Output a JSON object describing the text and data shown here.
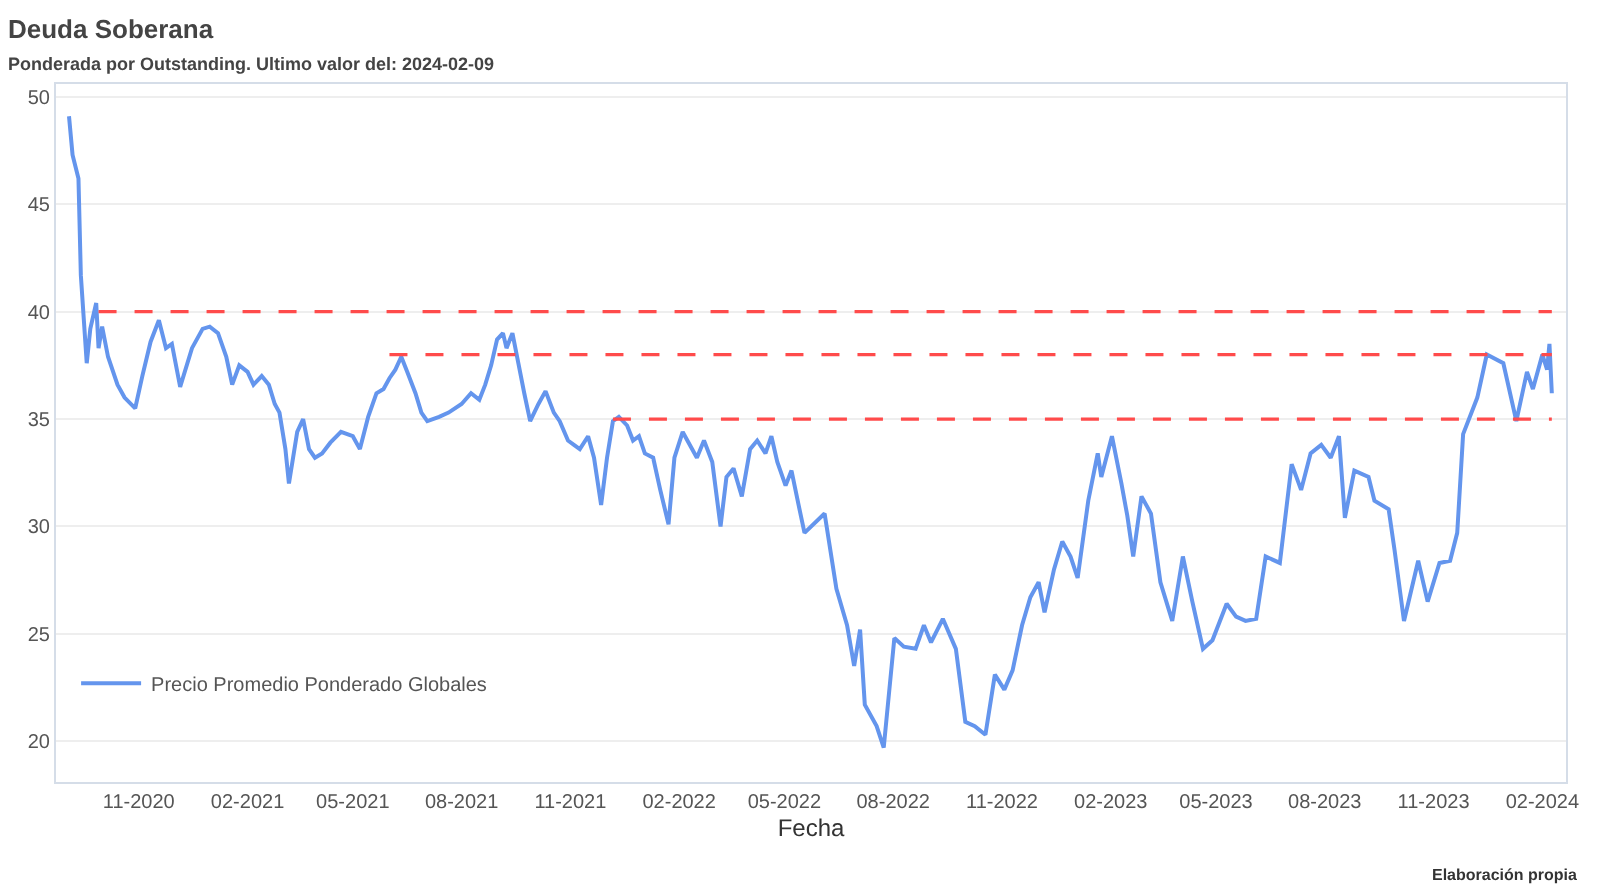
{
  "chart_data": {
    "type": "line",
    "title": "Deuda Soberana",
    "subtitle": "Ponderada por Outstanding. Ultimo valor del: 2024-02-09",
    "xlabel": "Fecha",
    "annotations": [
      "Elaboración propia"
    ],
    "series": [
      {
        "name": "Precio Promedio Ponderado Globales",
        "color": "#6495ed",
        "line_style": "solid",
        "x": [
          "2020-09-03",
          "2020-09-06",
          "2020-09-11",
          "2020-09-13",
          "2020-09-18",
          "2020-09-21",
          "2020-09-26",
          "2020-09-28",
          "2020-10-01",
          "2020-10-06",
          "2020-10-14",
          "2020-10-20",
          "2020-10-29",
          "2020-11-04",
          "2020-11-11",
          "2020-11-18",
          "2020-11-24",
          "2020-11-29",
          "2020-12-06",
          "2020-12-16",
          "2020-12-25",
          "2020-12-31",
          "2021-01-07",
          "2021-01-14",
          "2021-01-19",
          "2021-01-25",
          "2021-02-01",
          "2021-02-06",
          "2021-02-13",
          "2021-02-19",
          "2021-02-24",
          "2021-02-28",
          "2021-03-05",
          "2021-03-08",
          "2021-03-15",
          "2021-03-20",
          "2021-03-25",
          "2021-03-30",
          "2021-04-05",
          "2021-04-12",
          "2021-04-21",
          "2021-05-01",
          "2021-05-07",
          "2021-05-14",
          "2021-05-21",
          "2021-05-27",
          "2021-06-01",
          "2021-06-06",
          "2021-06-11",
          "2021-06-16",
          "2021-06-23",
          "2021-06-28",
          "2021-07-03",
          "2021-07-13",
          "2021-07-21",
          "2021-08-01",
          "2021-08-09",
          "2021-08-16",
          "2021-08-21",
          "2021-08-26",
          "2021-08-31",
          "2021-09-05",
          "2021-09-08",
          "2021-09-13",
          "2021-09-18",
          "2021-09-23",
          "2021-09-28",
          "2021-10-05",
          "2021-10-11",
          "2021-10-18",
          "2021-10-23",
          "2021-10-30",
          "2021-11-04",
          "2021-11-09",
          "2021-11-16",
          "2021-11-21",
          "2021-11-27",
          "2021-12-02",
          "2021-12-07",
          "2021-12-12",
          "2021-12-19",
          "2021-12-24",
          "2021-12-29",
          "2022-01-03",
          "2022-01-10",
          "2022-01-16",
          "2022-01-23",
          "2022-01-28",
          "2022-02-04",
          "2022-02-09",
          "2022-02-16",
          "2022-02-22",
          "2022-03-01",
          "2022-03-08",
          "2022-03-13",
          "2022-03-19",
          "2022-03-26",
          "2022-04-02",
          "2022-04-08",
          "2022-04-15",
          "2022-04-20",
          "2022-04-25",
          "2022-05-02",
          "2022-05-07",
          "2022-05-13",
          "2022-05-18",
          "2022-06-04",
          "2022-06-14",
          "2022-06-23",
          "2022-06-29",
          "2022-07-04",
          "2022-07-08",
          "2022-07-18",
          "2022-07-24",
          "2022-08-02",
          "2022-08-10",
          "2022-08-20",
          "2022-08-27",
          "2022-09-02",
          "2022-09-12",
          "2022-09-23",
          "2022-10-01",
          "2022-10-09",
          "2022-10-18",
          "2022-10-26",
          "2022-11-03",
          "2022-11-10",
          "2022-11-18",
          "2022-11-25",
          "2022-12-02",
          "2022-12-07",
          "2022-12-15",
          "2022-12-22",
          "2022-12-29",
          "2023-01-04",
          "2023-01-13",
          "2023-01-21",
          "2023-01-24",
          "2023-02-02",
          "2023-02-10",
          "2023-02-15",
          "2023-02-20",
          "2023-02-27",
          "2023-03-07",
          "2023-03-15",
          "2023-03-25",
          "2023-04-03",
          "2023-04-11",
          "2023-04-20",
          "2023-04-28",
          "2023-05-10",
          "2023-05-18",
          "2023-05-26",
          "2023-06-04",
          "2023-06-12",
          "2023-06-24",
          "2023-07-04",
          "2023-07-12",
          "2023-07-20",
          "2023-07-29",
          "2023-08-06",
          "2023-08-13",
          "2023-08-18",
          "2023-08-26",
          "2023-09-07",
          "2023-09-12",
          "2023-09-24",
          "2023-09-29",
          "2023-10-07",
          "2023-10-19",
          "2023-10-27",
          "2023-11-06",
          "2023-11-15",
          "2023-11-21",
          "2023-11-26",
          "2023-12-08",
          "2023-12-16",
          "2023-12-30",
          "2024-01-10",
          "2024-01-19",
          "2024-01-24",
          "2024-02-01",
          "2024-02-05",
          "2024-02-07",
          "2024-02-09"
        ],
        "values": [
          49.1,
          47.3,
          46.2,
          41.7,
          37.6,
          39.2,
          40.4,
          38.3,
          39.3,
          37.9,
          36.6,
          36.0,
          35.5,
          37.0,
          38.6,
          39.6,
          38.3,
          38.5,
          36.5,
          38.3,
          39.2,
          39.3,
          39.0,
          37.9,
          36.6,
          37.5,
          37.2,
          36.6,
          37.0,
          36.6,
          35.7,
          35.3,
          33.6,
          32.0,
          34.4,
          35.0,
          33.6,
          33.2,
          33.4,
          33.9,
          34.4,
          34.2,
          33.6,
          35.1,
          36.2,
          36.4,
          36.9,
          37.3,
          37.9,
          37.2,
          36.2,
          35.3,
          34.9,
          35.1,
          35.3,
          35.7,
          36.2,
          35.9,
          36.6,
          37.5,
          38.7,
          39.0,
          38.3,
          39.0,
          37.6,
          36.2,
          34.9,
          35.7,
          36.3,
          35.3,
          34.9,
          34.0,
          33.8,
          33.6,
          34.2,
          33.2,
          31.0,
          33.2,
          34.9,
          35.1,
          34.7,
          34.0,
          34.2,
          33.4,
          33.2,
          31.7,
          30.1,
          33.2,
          34.4,
          33.9,
          33.2,
          34.0,
          33.0,
          30.0,
          32.3,
          32.7,
          31.4,
          33.6,
          34.0,
          33.4,
          34.2,
          33.0,
          31.9,
          32.6,
          31.0,
          29.7,
          30.6,
          27.1,
          25.4,
          23.5,
          25.2,
          21.7,
          20.7,
          19.7,
          24.8,
          24.4,
          24.3,
          25.4,
          24.6,
          25.7,
          24.3,
          20.9,
          20.7,
          20.3,
          23.1,
          22.4,
          23.3,
          25.4,
          26.7,
          27.4,
          26.0,
          28.0,
          29.3,
          28.6,
          27.6,
          31.2,
          33.4,
          32.3,
          34.2,
          32.0,
          30.5,
          28.6,
          31.4,
          30.6,
          27.4,
          25.6,
          28.6,
          26.5,
          24.3,
          24.7,
          26.4,
          25.8,
          25.6,
          25.7,
          28.6,
          28.3,
          32.9,
          31.7,
          33.4,
          33.8,
          33.2,
          34.2,
          30.4,
          32.6,
          32.3,
          31.2,
          30.8,
          28.9,
          25.6,
          28.4,
          26.5,
          28.3,
          28.4,
          29.7,
          34.3,
          36.0,
          38.0,
          37.6,
          34.9,
          37.2,
          36.4,
          38.0,
          37.3,
          38.5,
          36.2
        ]
      },
      {
        "color": "#ff4b4b",
        "line_style": "dashed",
        "x": [
          "2020-09-28",
          "2024-02-09"
        ],
        "values": [
          40,
          40
        ]
      },
      {
        "color": "#ff4b4b",
        "line_style": "dashed",
        "x": [
          "2021-06-01",
          "2024-02-09"
        ],
        "values": [
          38,
          38
        ]
      },
      {
        "color": "#ff4b4b",
        "line_style": "dashed",
        "x": [
          "2021-12-07",
          "2024-02-09"
        ],
        "values": [
          35,
          35
        ]
      }
    ],
    "xlim": [
      "2020-08-23",
      "2024-02-21"
    ],
    "xticks": [
      {
        "value": "2020-11-01",
        "label": "11-2020"
      },
      {
        "value": "2021-02-01",
        "label": "02-2021"
      },
      {
        "value": "2021-05-01",
        "label": "05-2021"
      },
      {
        "value": "2021-08-01",
        "label": "08-2021"
      },
      {
        "value": "2021-11-01",
        "label": "11-2021"
      },
      {
        "value": "2022-02-01",
        "label": "02-2022"
      },
      {
        "value": "2022-05-01",
        "label": "05-2022"
      },
      {
        "value": "2022-08-01",
        "label": "08-2022"
      },
      {
        "value": "2022-11-01",
        "label": "11-2022"
      },
      {
        "value": "2023-02-01",
        "label": "02-2023"
      },
      {
        "value": "2023-05-01",
        "label": "05-2023"
      },
      {
        "value": "2023-08-01",
        "label": "08-2023"
      },
      {
        "value": "2023-11-01",
        "label": "11-2023"
      },
      {
        "value": "2024-02-01",
        "label": "02-2024"
      }
    ],
    "ylim": [
      18.1,
      50.6
    ],
    "yticks": [
      20,
      25,
      30,
      35,
      40,
      45,
      50
    ],
    "grid": "y",
    "legend": "bottom left",
    "marker": "none"
  }
}
